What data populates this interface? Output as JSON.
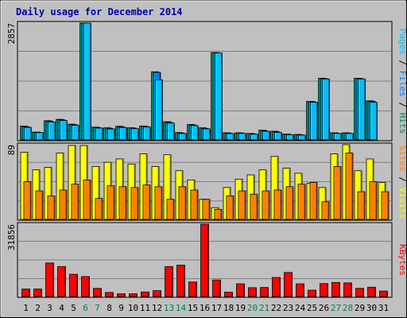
{
  "title": "Daily usage for December 2014",
  "colors": {
    "background": "#c0c0c0",
    "grid": "#808080",
    "pages": "#00c0ff",
    "files": "#0080ff",
    "hits": "#00805c",
    "visits": "#ffff00",
    "sites": "#ff8000",
    "kbytes": "#ff0000",
    "day_normal": "#000000",
    "day_weekend": "#00805c",
    "title": "#0000b0"
  },
  "chart_data": [
    {
      "type": "bar",
      "panel": "hits-files-pages",
      "ymax_label": "2857",
      "ylim": [
        0,
        2857
      ],
      "legend": [
        "Pages",
        "Files",
        "Hits"
      ],
      "categories": [
        "1",
        "2",
        "3",
        "4",
        "5",
        "6",
        "7",
        "8",
        "9",
        "10",
        "11",
        "12",
        "13",
        "14",
        "15",
        "16",
        "17",
        "18",
        "19",
        "20",
        "21",
        "22",
        "23",
        "24",
        "25",
        "26",
        "27",
        "28",
        "29",
        "30",
        "31"
      ],
      "weekend_days": [
        "6",
        "7",
        "13",
        "14",
        "20",
        "21",
        "27",
        "28"
      ],
      "series": [
        {
          "name": "Hits",
          "values": [
            337,
            192,
            470,
            503,
            386,
            2857,
            312,
            297,
            334,
            297,
            341,
            1666,
            445,
            180,
            378,
            297,
            2137,
            175,
            175,
            158,
            237,
            212,
            143,
            134,
            942,
            1509,
            175,
            175,
            1509,
            957,
            0
          ]
        },
        {
          "name": "Files",
          "values": [
            322,
            186,
            455,
            490,
            372,
            2857,
            302,
            282,
            318,
            288,
            328,
            1650,
            430,
            168,
            364,
            283,
            2126,
            165,
            168,
            150,
            225,
            198,
            135,
            125,
            935,
            1500,
            166,
            166,
            1500,
            945,
            0
          ]
        },
        {
          "name": "Pages",
          "values": [
            308,
            180,
            440,
            475,
            358,
            2857,
            290,
            268,
            305,
            276,
            316,
            1470,
            410,
            158,
            350,
            270,
            2126,
            155,
            160,
            140,
            212,
            185,
            128,
            118,
            920,
            1490,
            160,
            160,
            1490,
            920,
            0
          ]
        }
      ]
    },
    {
      "type": "bar",
      "panel": "visits-sites",
      "ymax_label": "89",
      "ylim": [
        0,
        89
      ],
      "legend": [
        "Sites",
        "Visits"
      ],
      "categories": [
        "1",
        "2",
        "3",
        "4",
        "5",
        "6",
        "7",
        "8",
        "9",
        "10",
        "11",
        "12",
        "13",
        "14",
        "15",
        "16",
        "17",
        "18",
        "19",
        "20",
        "21",
        "22",
        "23",
        "24",
        "25",
        "26",
        "27",
        "28",
        "29",
        "30",
        "31"
      ],
      "weekend_days": [
        "6",
        "7",
        "13",
        "14",
        "20",
        "21",
        "27",
        "28"
      ],
      "series": [
        {
          "name": "Visits",
          "values": [
            80,
            59,
            62,
            79,
            88,
            88,
            63,
            68,
            72,
            66,
            78,
            63,
            77,
            58,
            47,
            24,
            14,
            38,
            48,
            53,
            59,
            75,
            61,
            55,
            43,
            38,
            78,
            89,
            58,
            72,
            44
          ]
        },
        {
          "name": "Sites",
          "values": [
            45,
            34,
            28,
            35,
            42,
            47,
            25,
            40,
            39,
            38,
            41,
            39,
            24,
            39,
            35,
            24,
            12,
            28,
            34,
            30,
            34,
            35,
            39,
            42,
            44,
            21,
            63,
            79,
            33,
            45,
            33
          ]
        }
      ]
    },
    {
      "type": "bar",
      "panel": "kbytes",
      "ymax_label": "31856",
      "ylim": [
        0,
        31856
      ],
      "legend": [
        "KBytes"
      ],
      "categories": [
        "1",
        "2",
        "3",
        "4",
        "5",
        "6",
        "7",
        "8",
        "9",
        "10",
        "11",
        "12",
        "13",
        "14",
        "15",
        "16",
        "17",
        "18",
        "19",
        "20",
        "21",
        "22",
        "23",
        "24",
        "25",
        "26",
        "27",
        "28",
        "29",
        "30",
        "31"
      ],
      "weekend_days": [
        "6",
        "7",
        "13",
        "14",
        "20",
        "21",
        "27",
        "28"
      ],
      "series": [
        {
          "name": "KBytes",
          "values": [
            3300,
            3300,
            14800,
            13200,
            9800,
            8800,
            3600,
            1800,
            1200,
            1200,
            2000,
            2600,
            13200,
            13800,
            6400,
            32000,
            7300,
            1900,
            5600,
            3900,
            4000,
            8400,
            10600,
            5600,
            2800,
            5700,
            6200,
            6000,
            3600,
            4100,
            2400
          ]
        }
      ]
    }
  ]
}
